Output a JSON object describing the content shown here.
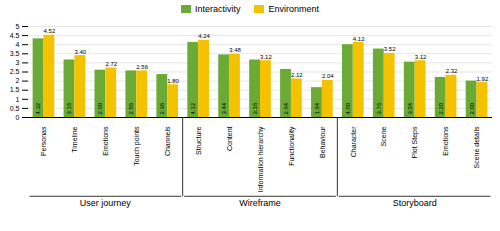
{
  "chart_data": {
    "type": "bar",
    "categories": [
      "Personas",
      "Timeline",
      "Emotions",
      "Touch points",
      "Channels",
      "Structure",
      "Content",
      "Information hierarchy",
      "Functionality",
      "Behaviour",
      "Character",
      "Scene",
      "Plot Steps",
      "Emotions",
      "Scene details"
    ],
    "groups": [
      "User journey",
      "Wireframe",
      "Storyboard"
    ],
    "group_sizes": [
      5,
      5,
      5
    ],
    "series": [
      {
        "name": "Interactivity",
        "color": "#6aaa35",
        "values": [
          4.32,
          3.16,
          2.6,
          2.56,
          2.36,
          4.12,
          3.44,
          3.16,
          2.64,
          1.64,
          4.0,
          3.76,
          3.04,
          2.2,
          2.0
        ],
        "value_labels": [
          "4.32",
          "3.16",
          "2.60",
          "2.56",
          "2.36",
          "4.12",
          "3.44",
          "3.16",
          "2.64",
          "1.64",
          "4.00",
          "3.76",
          "3.04",
          "2.20",
          "2.00"
        ]
      },
      {
        "name": "Environment",
        "color": "#f5c200",
        "values": [
          4.52,
          3.4,
          2.72,
          2.56,
          1.8,
          4.24,
          3.48,
          3.12,
          2.12,
          2.04,
          4.12,
          3.52,
          3.12,
          2.32,
          1.92
        ],
        "value_labels": [
          "4.52",
          "3.40",
          "2.72",
          "2.56",
          "1.80",
          "4.24",
          "3.48",
          "3.12",
          "2.12",
          "2.04",
          "4.12",
          "3.52",
          "3.12",
          "2.32",
          "1.92"
        ]
      }
    ],
    "ylim": [
      0,
      5
    ],
    "yticks": [
      0,
      0.5,
      1,
      1.5,
      2,
      2.5,
      3,
      3.5,
      4,
      4.5,
      5
    ],
    "grid": true,
    "legend": "top",
    "data_labels": true
  }
}
